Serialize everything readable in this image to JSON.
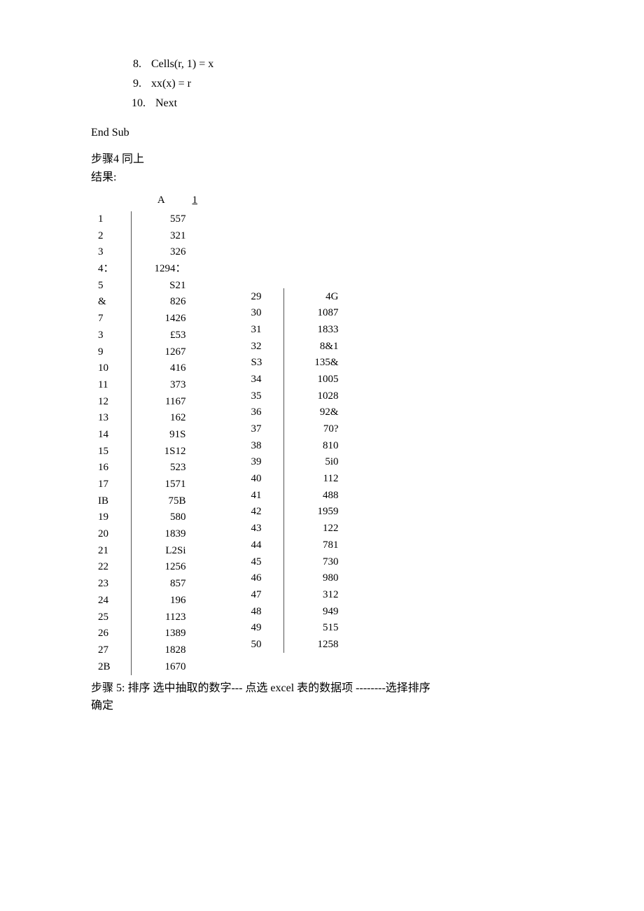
{
  "code_lines": [
    {
      "n": "8.",
      "text": "Cells(r, 1) = x"
    },
    {
      "n": "9.",
      "text": "xx(x) = r"
    },
    {
      "n": "10.",
      "text": "  Next"
    }
  ],
  "end_sub": "End Sub",
  "step4": "步骤4 同上",
  "result_label": "结果:",
  "header_A": "A",
  "header_1": "1",
  "table1": [
    {
      "r": "1",
      "v": "557"
    },
    {
      "r": "2",
      "v": "321"
    },
    {
      "r": "3",
      "v": "326"
    },
    {
      "r": "4：",
      "v": "1294："
    },
    {
      "r": "5",
      "v": "S21"
    },
    {
      "r": "&",
      "v": "826"
    },
    {
      "r": "7",
      "v": "1426"
    },
    {
      "r": "3",
      "v": "£53"
    },
    {
      "r": "9",
      "v": "1267"
    },
    {
      "r": "10",
      "v": "416"
    },
    {
      "r": "11",
      "v": "373"
    },
    {
      "r": "12",
      "v": "1167"
    },
    {
      "r": "13",
      "v": "162"
    },
    {
      "r": "14",
      "v": "91S"
    },
    {
      "r": "15",
      "v": "1S12"
    },
    {
      "r": "16",
      "v": "523"
    },
    {
      "r": "17",
      "v": "1571"
    },
    {
      "r": "IB",
      "v": "75B"
    },
    {
      "r": "19",
      "v": "580"
    },
    {
      "r": "20",
      "v": "1839"
    },
    {
      "r": "21",
      "v": "L2Si"
    },
    {
      "r": "22",
      "v": "1256"
    },
    {
      "r": "23",
      "v": "857"
    },
    {
      "r": "24",
      "v": "196"
    },
    {
      "r": "25",
      "v": "1123"
    },
    {
      "r": "26",
      "v": "1389"
    },
    {
      "r": "27",
      "v": "1828"
    },
    {
      "r": "2B",
      "v": "1670"
    }
  ],
  "table2": [
    {
      "r": "29",
      "v": "4G"
    },
    {
      "r": "30",
      "v": "1087"
    },
    {
      "r": "31",
      "v": "1833"
    },
    {
      "r": "32",
      "v": "8&1"
    },
    {
      "r": "S3",
      "v": "135&"
    },
    {
      "r": "34",
      "v": "1005"
    },
    {
      "r": "35",
      "v": "1028"
    },
    {
      "r": "36",
      "v": "92&"
    },
    {
      "r": "37",
      "v": "70?"
    },
    {
      "r": "38",
      "v": "810"
    },
    {
      "r": "39",
      "v": "5i0"
    },
    {
      "r": "40",
      "v": "112"
    },
    {
      "r": "41",
      "v": "488"
    },
    {
      "r": "42",
      "v": "1959"
    },
    {
      "r": "43",
      "v": "122"
    },
    {
      "r": "44",
      "v": "781"
    },
    {
      "r": "45",
      "v": "730"
    },
    {
      "r": "46",
      "v": "980"
    },
    {
      "r": "47",
      "v": "312"
    },
    {
      "r": "48",
      "v": "949"
    },
    {
      "r": "49",
      "v": "515"
    },
    {
      "r": "50",
      "v": "1258"
    }
  ],
  "step5_line1": "步骤  5: 排序  选中抽取的数字---  点选  excel 表的数据项  --------选择排序",
  "step5_line2": "确定"
}
